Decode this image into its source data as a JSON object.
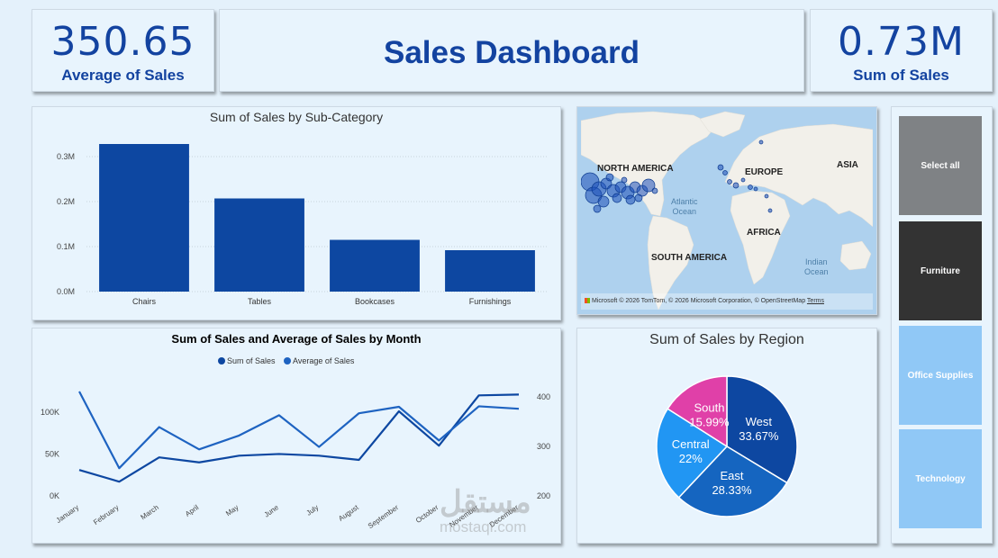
{
  "kpi_average": {
    "value": "350.65",
    "label": "Average of Sales"
  },
  "header": {
    "title": "Sales Dashboard"
  },
  "kpi_sum": {
    "value": "0.73M",
    "label": "Sum of Sales"
  },
  "map": {
    "labels": {
      "north_america": "NORTH AMERICA",
      "europe": "EUROPE",
      "asia": "ASIA",
      "africa": "AFRICA",
      "south_america": "SOUTH AMERICA"
    },
    "oceans": {
      "atlantic_1": "Atlantic",
      "atlantic_2": "Ocean",
      "indian_1": "Indian",
      "indian_2": "Ocean"
    },
    "attribution": {
      "brand": "Microsoft",
      "text": "© 2026 TomTom, © 2026 Microsoft Corporation, © OpenStreetMap",
      "terms": "Terms"
    }
  },
  "slicer": {
    "items": [
      {
        "label": "Select all",
        "color": "#7f8285"
      },
      {
        "label": "Furniture",
        "color": "#333333"
      },
      {
        "label": "Office Supplies",
        "color": "#90c8f6"
      },
      {
        "label": "Technology",
        "color": "#90c8f6"
      }
    ]
  },
  "watermark": {
    "line1": "مستقل",
    "line2": "mostaql.com"
  },
  "colors": {
    "primary": "#0d47a1",
    "secondary": "#1e63c1",
    "background": "#e4f1fb",
    "card": "#e8f4fd"
  },
  "chart_data": [
    {
      "type": "bar",
      "title": "Sum of Sales by Sub-Category",
      "categories": [
        "Chairs",
        "Tables",
        "Bookcases",
        "Furnishings"
      ],
      "values": [
        328000,
        207000,
        115000,
        92000
      ],
      "yticks": [
        {
          "v": 0,
          "label": "0.0M"
        },
        {
          "v": 100000,
          "label": "0.1M"
        },
        {
          "v": 200000,
          "label": "0.2M"
        },
        {
          "v": 300000,
          "label": "0.3M"
        }
      ],
      "ylim": [
        0,
        330000
      ],
      "grid": true,
      "color": "#0d47a1"
    },
    {
      "type": "line",
      "title": "Sum of Sales and Average of Sales by Month",
      "categories": [
        "January",
        "February",
        "March",
        "April",
        "May",
        "June",
        "July",
        "August",
        "September",
        "October",
        "November",
        "December"
      ],
      "series": [
        {
          "name": "Sum of Sales",
          "axis": "left",
          "color": "#0d47a1",
          "values": [
            31000,
            17000,
            46000,
            40000,
            48000,
            50000,
            48000,
            43000,
            101000,
            60000,
            120000,
            121000
          ]
        },
        {
          "name": "Average of Sales",
          "axis": "right",
          "color": "#1e63c1",
          "values": [
            411,
            256,
            339,
            294,
            322,
            363,
            299,
            367,
            380,
            312,
            381,
            376
          ]
        }
      ],
      "y_left": {
        "ylim": [
          0,
          130000
        ],
        "ticks": [
          {
            "v": 0,
            "label": "0K"
          },
          {
            "v": 50000,
            "label": "50K"
          },
          {
            "v": 100000,
            "label": "100K"
          }
        ]
      },
      "y_right": {
        "ylim": [
          200,
          420
        ],
        "ticks": [
          {
            "v": 200,
            "label": "200"
          },
          {
            "v": 300,
            "label": "300"
          },
          {
            "v": 400,
            "label": "400"
          }
        ]
      },
      "legend_position": "top-center",
      "grid": false
    },
    {
      "type": "pie",
      "title": "Sum of Sales by Region",
      "slices": [
        {
          "name": "West",
          "value": 33.67,
          "label": "33.67%",
          "color": "#0d47a1"
        },
        {
          "name": "East",
          "value": 28.33,
          "label": "28.33%",
          "color": "#1565c0"
        },
        {
          "name": "Central",
          "value": 22.0,
          "label": "22%",
          "color": "#2196f3"
        },
        {
          "name": "South",
          "value": 15.99,
          "label": "15.99%",
          "color": "#e040a8"
        }
      ]
    }
  ]
}
